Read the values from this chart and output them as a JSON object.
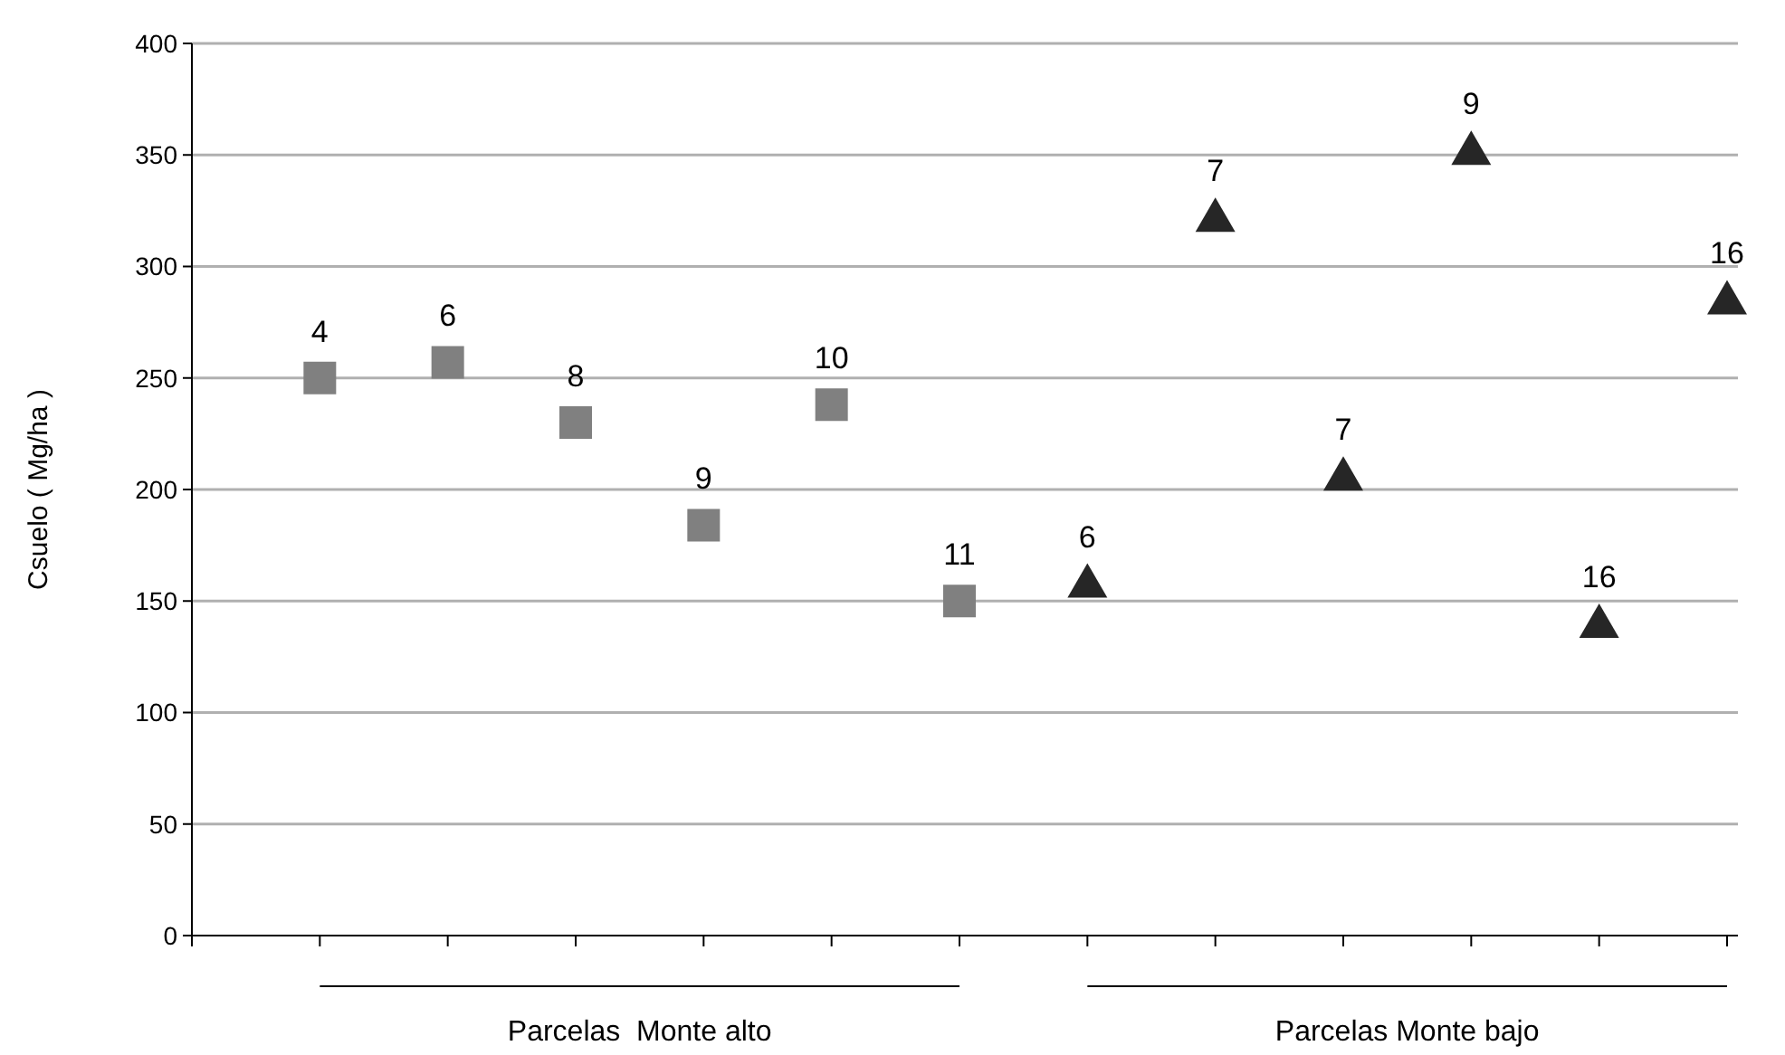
{
  "chart_data": {
    "type": "scatter",
    "ylabel": "Csuelo ( Mg/ha )",
    "categories": [
      null,
      null,
      null,
      null,
      null,
      null,
      null,
      null,
      null,
      null,
      null,
      null,
      null
    ],
    "series": [
      {
        "color": "#808080",
        "marker": "square",
        "values": [
          null,
          250,
          257,
          230,
          184,
          238,
          150,
          null,
          null,
          null,
          null,
          null,
          null
        ]
      },
      {
        "color": "#262626",
        "marker": "triangle",
        "values": [
          null,
          null,
          null,
          null,
          null,
          null,
          null,
          158,
          322,
          206,
          352,
          140,
          285
        ]
      }
    ],
    "ylim": [
      0,
      400
    ],
    "yticks": [
      0,
      50,
      100,
      150,
      200,
      250,
      300,
      350,
      400
    ],
    "grid": "y",
    "annotations": [
      "Parcelas  Monte alto",
      "Parcelas Monte bajo",
      {
        "text": "4",
        "y": 250
      },
      {
        "text": "6",
        "y": 257
      },
      {
        "text": "8",
        "y": 230
      },
      {
        "text": "9",
        "y": 184
      },
      {
        "text": "10",
        "y": 238
      },
      {
        "text": "11",
        "y": 150
      },
      {
        "text": "6",
        "y": 158
      },
      {
        "text": "7",
        "y": 322
      },
      {
        "text": "7",
        "y": 206
      },
      {
        "text": "9",
        "y": 352
      },
      {
        "text": "16",
        "y": 140
      },
      {
        "text": "16",
        "y": 285
      }
    ]
  }
}
